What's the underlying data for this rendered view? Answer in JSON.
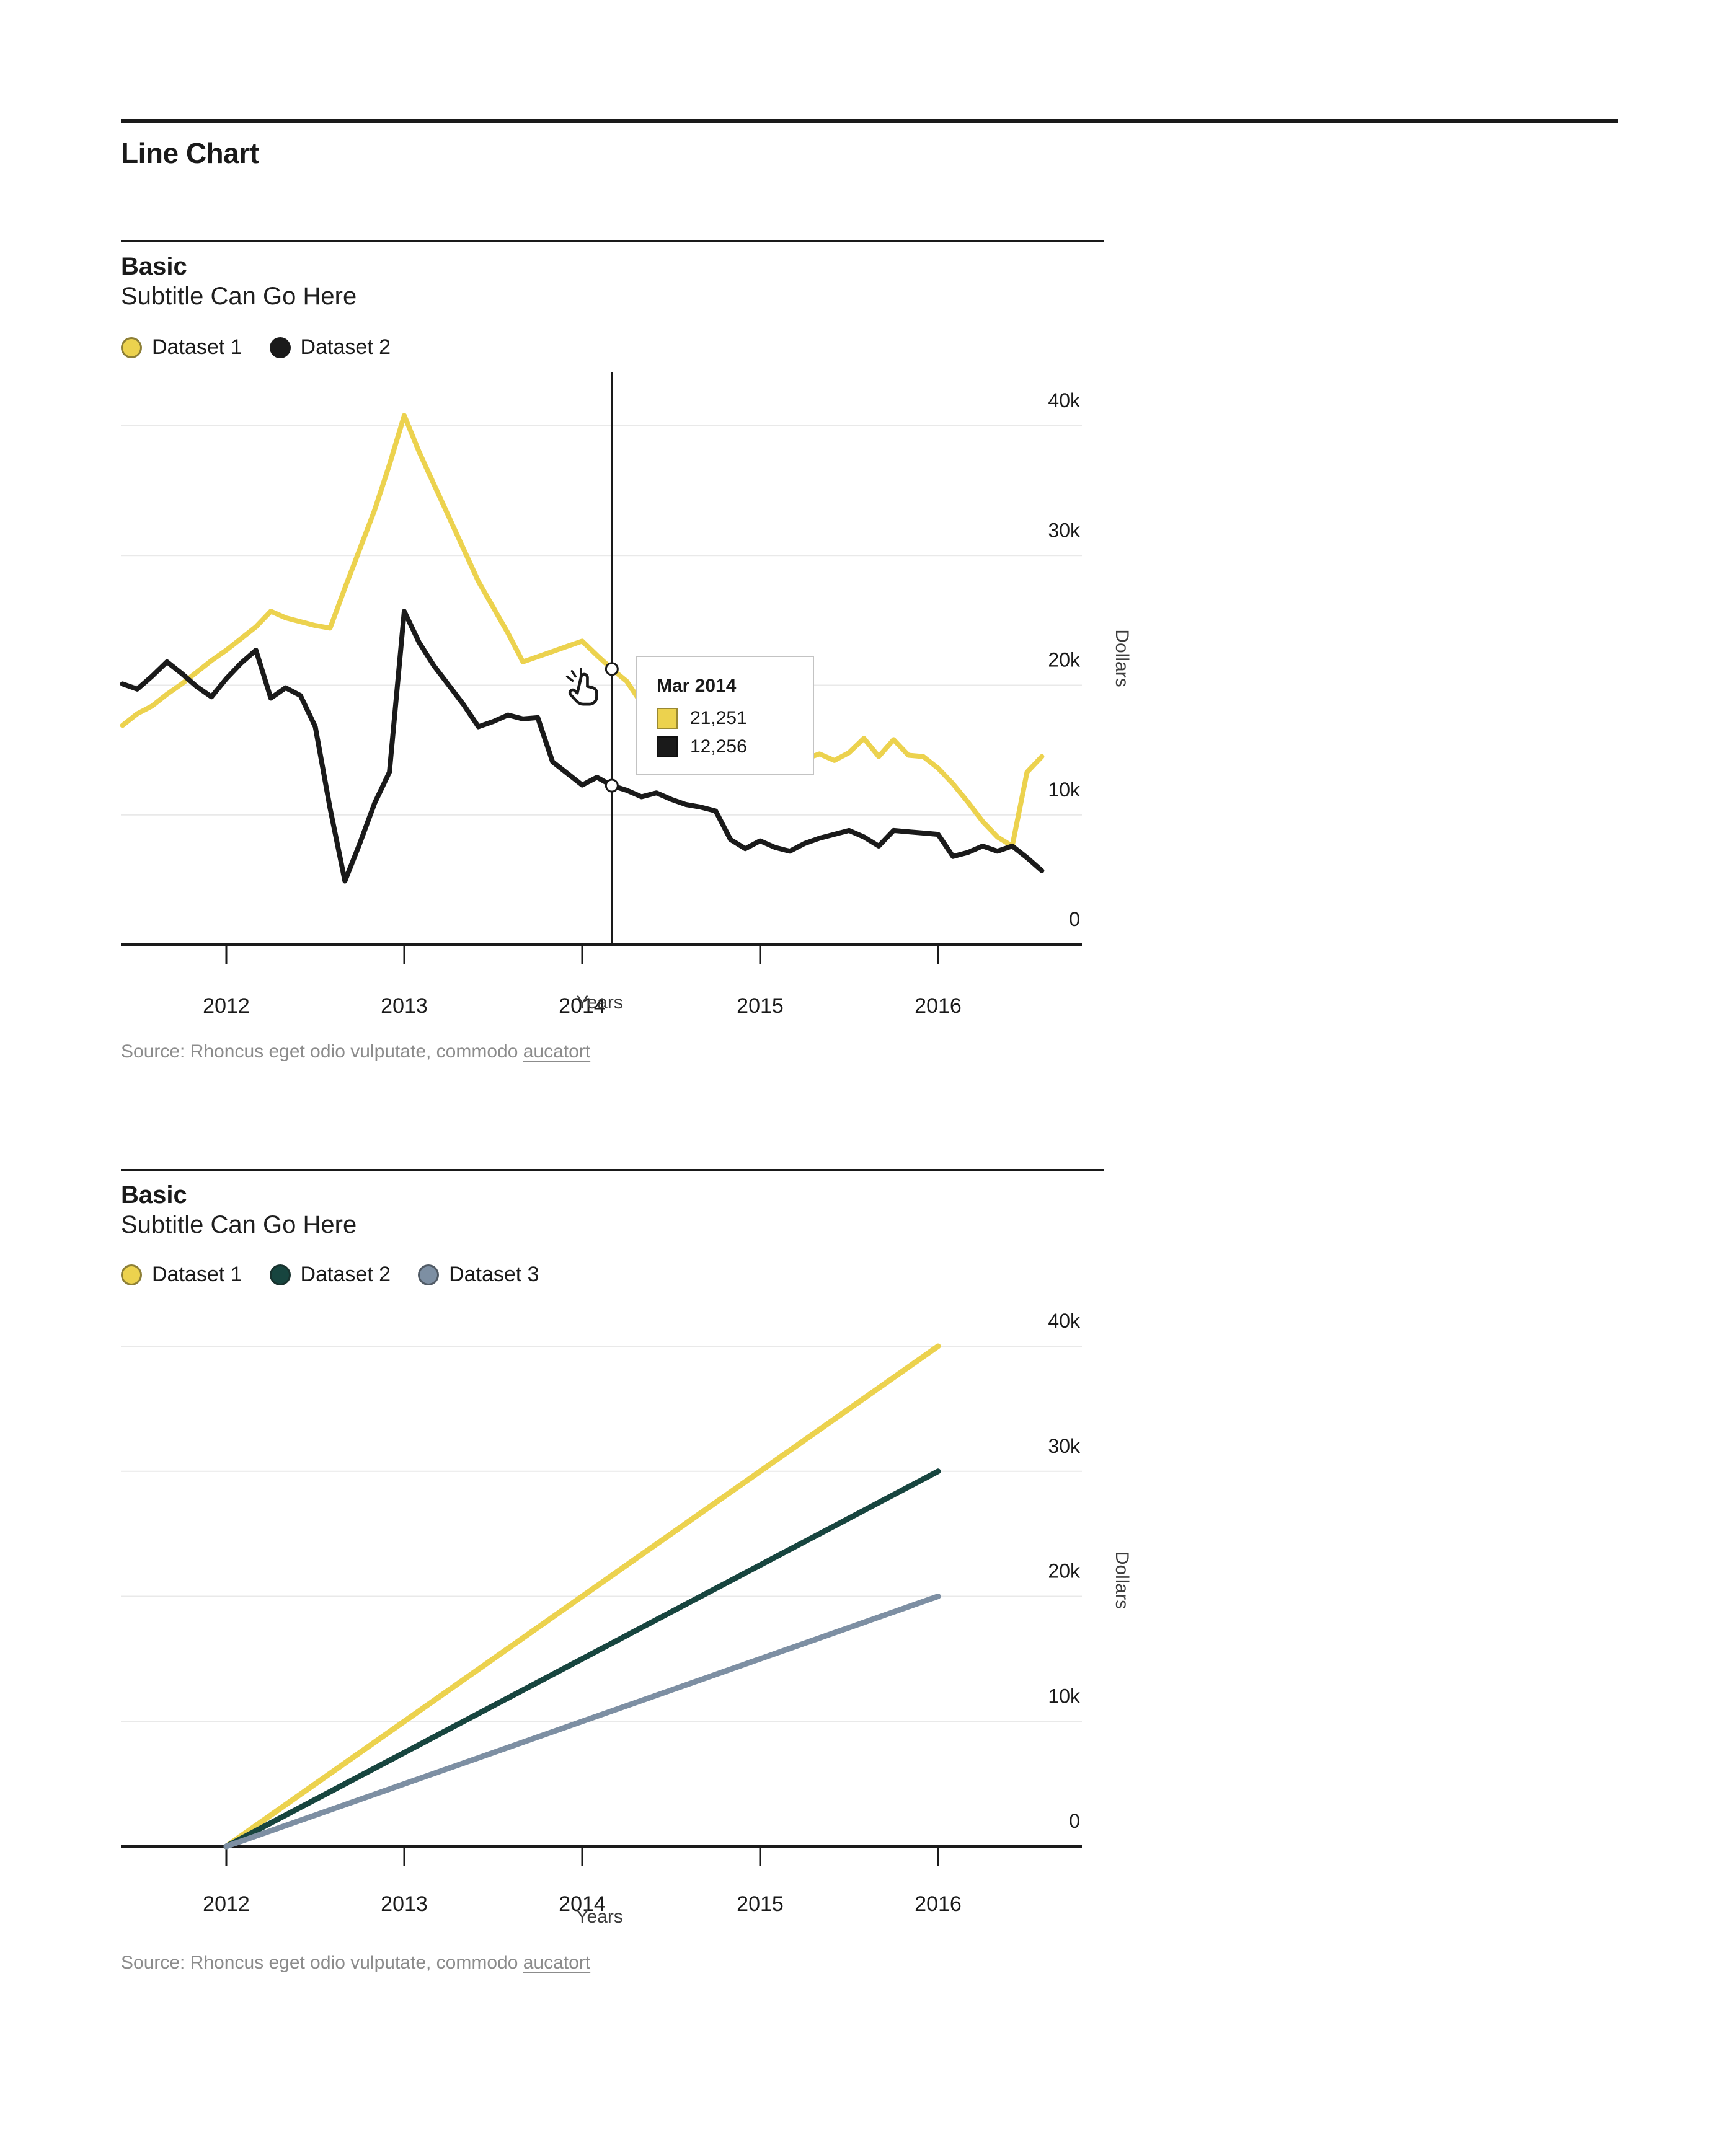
{
  "page": {
    "title": "Line Chart"
  },
  "chart_data": [
    {
      "type": "line",
      "title": "Basic",
      "subtitle": "Subtitle Can Go Here",
      "xlabel": "Years",
      "ylabel": "Dollars",
      "x_start": "2011-06",
      "x_interval": "monthly",
      "x_tick_labels": [
        "2012",
        "2013",
        "2014",
        "2015",
        "2016"
      ],
      "y_ticks": [
        0,
        10000,
        20000,
        30000,
        40000
      ],
      "y_tick_labels": [
        "0",
        "10k",
        "20k",
        "30k",
        "40k"
      ],
      "ylim": [
        0,
        44000
      ],
      "grid": "horizontal",
      "legend_position": "top-left",
      "series": [
        {
          "name": "Dataset 1",
          "color": "#ecd24e",
          "values": [
            16900,
            17800,
            18400,
            19300,
            20100,
            21000,
            21900,
            22700,
            23600,
            24500,
            25700,
            25200,
            24900,
            24600,
            24400,
            27500,
            30500,
            33500,
            37000,
            40800,
            38000,
            35500,
            33000,
            30500,
            28000,
            26000,
            24000,
            21800,
            22200,
            22600,
            23000,
            23400,
            22300,
            21251,
            20300,
            18600,
            17000,
            15800,
            15100,
            15600,
            14700,
            15300,
            14600,
            15000,
            14400,
            14900,
            14300,
            14700,
            14200,
            14800,
            15900,
            14500,
            15800,
            14600,
            14500,
            13600,
            12400,
            11000,
            9500,
            8300,
            7600,
            13300,
            14500
          ]
        },
        {
          "name": "Dataset 2",
          "color": "#1a1a1a",
          "values": [
            20100,
            19700,
            20700,
            21800,
            20900,
            19900,
            19100,
            20500,
            21700,
            22700,
            19000,
            19800,
            19200,
            16800,
            10500,
            4900,
            7800,
            10900,
            13300,
            25700,
            23300,
            21500,
            20000,
            18500,
            16800,
            17200,
            17700,
            17400,
            17500,
            14100,
            13200,
            12300,
            12900,
            12256,
            11900,
            11400,
            11700,
            11200,
            10800,
            10600,
            10300,
            8100,
            7400,
            8000,
            7500,
            7200,
            7800,
            8200,
            8500,
            8800,
            8300,
            7600,
            8800,
            8700,
            8600,
            8500,
            6800,
            7100,
            7600,
            7200,
            7600,
            6700,
            5700
          ]
        }
      ],
      "tooltip": {
        "title": "Mar 2014",
        "point_index": 33,
        "rows": [
          {
            "color": "#ecd24e",
            "value": "21,251"
          },
          {
            "color": "#1a1a1a",
            "value": "12,256"
          }
        ]
      },
      "source_prefix": "Source: Rhoncus eget odio vulputate, commodo ",
      "source_link": "aucatort"
    },
    {
      "type": "line",
      "title": "Basic",
      "subtitle": "Subtitle Can Go Here",
      "xlabel": "Years",
      "ylabel": "Dollars",
      "x": [
        2012,
        2013,
        2014,
        2015,
        2016
      ],
      "x_tick_labels": [
        "2012",
        "2013",
        "2014",
        "2015",
        "2016"
      ],
      "y_ticks": [
        0,
        10000,
        20000,
        30000,
        40000
      ],
      "y_tick_labels": [
        "0",
        "10k",
        "20k",
        "30k",
        "40k"
      ],
      "ylim": [
        0,
        42000
      ],
      "grid": "horizontal",
      "legend_position": "top-left",
      "series": [
        {
          "name": "Dataset 1",
          "color": "#ecd24e",
          "values": [
            0,
            10000,
            20000,
            30000,
            40000
          ]
        },
        {
          "name": "Dataset 2",
          "color": "#17453f",
          "values": [
            0,
            7500,
            15000,
            22500,
            30000
          ]
        },
        {
          "name": "Dataset 3",
          "color": "#7d8fa3",
          "values": [
            0,
            5000,
            10000,
            15000,
            20000
          ]
        }
      ],
      "source_prefix": "Source: Rhoncus eget odio vulputate, commodo ",
      "source_link": "aucatort"
    }
  ]
}
